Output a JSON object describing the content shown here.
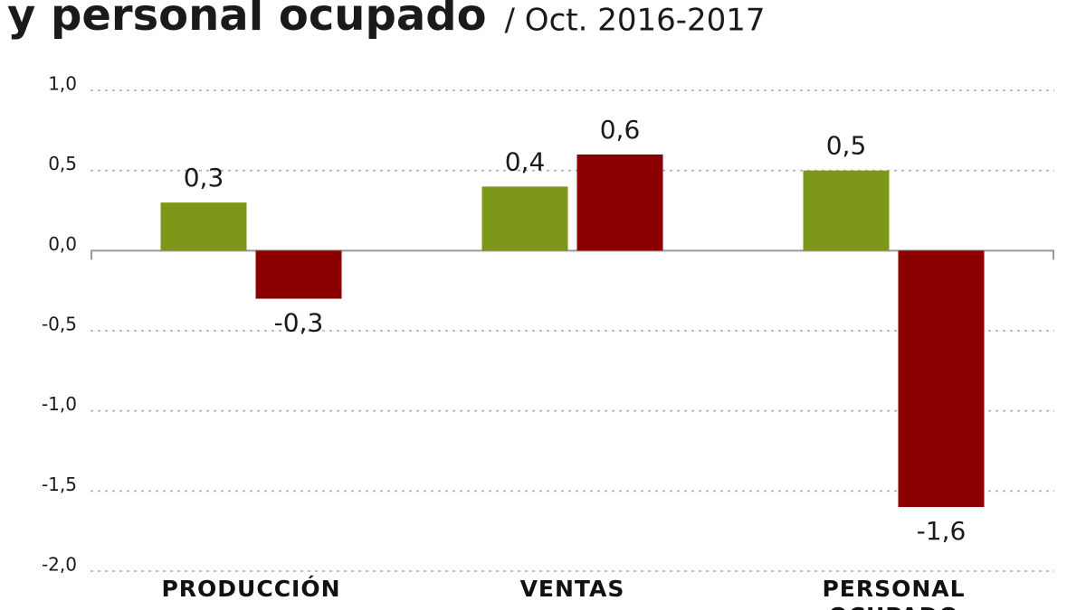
{
  "chart_data": {
    "type": "bar",
    "title": "y personal ocupado",
    "subtitle": "/ Oct. 2016-2017",
    "categories": [
      "PRODUCCIÓN",
      "VENTAS",
      "PERSONAL OCUPADO"
    ],
    "series": [
      {
        "color": "#7d9719",
        "values": [
          0.3,
          0.4,
          0.5
        ],
        "value_labels": [
          "0,3",
          "0,4",
          "0,5"
        ]
      },
      {
        "color": "#8a0000",
        "values": [
          -0.3,
          0.6,
          -1.6
        ],
        "value_labels": [
          "-0,3",
          "0,6",
          "-1,6"
        ]
      }
    ],
    "ylim": [
      -2.0,
      1.0
    ],
    "yticks": [
      {
        "value": 1.0,
        "label": "1,0"
      },
      {
        "value": 0.5,
        "label": "0,5"
      },
      {
        "value": 0.0,
        "label": "0,0"
      },
      {
        "value": -0.5,
        "label": "-0,5"
      },
      {
        "value": -1.0,
        "label": "-1,0"
      },
      {
        "value": -1.5,
        "label": "-1,5"
      },
      {
        "value": -2.0,
        "label": "-2,0"
      }
    ],
    "grid": true
  }
}
